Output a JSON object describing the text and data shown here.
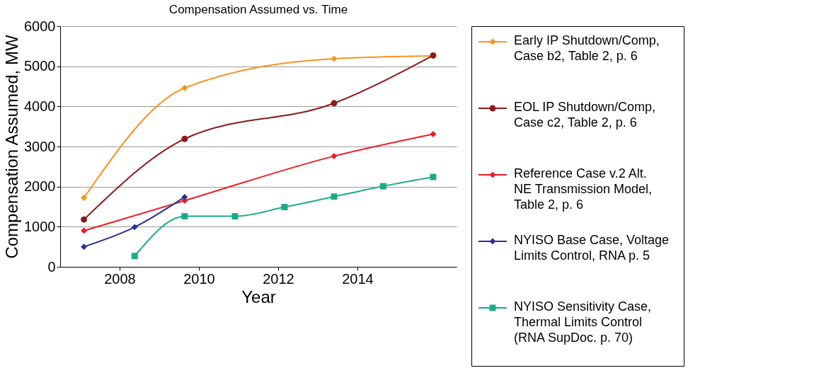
{
  "chart_data": {
    "type": "line",
    "title": "Compensation Assumed vs. Time",
    "xlabel": "Year",
    "ylabel": "Compensation Assumed, MW",
    "xlim": [
      2006.5,
      2016.5
    ],
    "xticks": [
      2008,
      2010,
      2012,
      2014
    ],
    "ylim": [
      0,
      6000
    ],
    "yticks": [
      0,
      1000,
      2000,
      3000,
      4000,
      5000,
      6000
    ],
    "grid": "y",
    "legend": "right",
    "line_style": "solid",
    "series": [
      {
        "name": "Early IP Shutdown/Comp, Case b2, Table 2, p. 6",
        "color": "#f7941d",
        "marker": "diamond",
        "x": [
          2007.1,
          2009.64,
          2013.41,
          2015.91
        ],
        "values": [
          1720,
          4460,
          5190,
          5260
        ]
      },
      {
        "name": "EOL IP Shutdown/Comp, Case c2, Table 2, p. 6",
        "color": "#8b1a1a",
        "marker": "circle",
        "x": [
          2007.1,
          2009.64,
          2013.41,
          2015.91
        ],
        "values": [
          1180,
          3190,
          4080,
          5270
        ]
      },
      {
        "name": "Reference Case v.2 Alt. NE Transmission Model, Table 2, p. 6",
        "color": "#ee1c25",
        "marker": "diamond",
        "x": [
          2007.1,
          2009.64,
          2013.41,
          2015.91
        ],
        "values": [
          900,
          1650,
          2760,
          3310
        ]
      },
      {
        "name": "NYISO Base Case, Voltage Limits Control, RNA p. 5",
        "color": "#2e3192",
        "marker": "diamond",
        "x": [
          2007.1,
          2008.38,
          2009.64
        ],
        "values": [
          500,
          990,
          1740
        ]
      },
      {
        "name": "NYISO Sensitivity Case, Thermal Limits Control (RNA SupDoc. p. 70)",
        "color": "#1aab8a",
        "marker": "square",
        "x": [
          2008.38,
          2009.64,
          2010.91,
          2012.16,
          2013.41,
          2014.65,
          2015.91
        ],
        "values": [
          270,
          1260,
          1260,
          1490,
          1750,
          2010,
          2240
        ]
      }
    ]
  }
}
